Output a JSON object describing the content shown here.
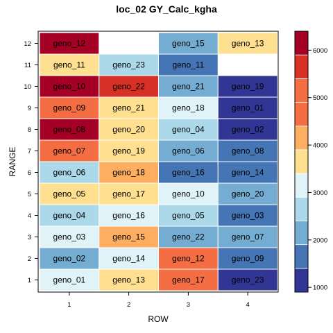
{
  "chart_data": {
    "type": "heatmap",
    "title": "loc_02 GY_Calc_kgha",
    "xlabel": "ROW",
    "ylabel": "RANGE",
    "x_ticks": [
      "1",
      "2",
      "3",
      "4"
    ],
    "y_ticks": [
      "1",
      "2",
      "3",
      "4",
      "5",
      "6",
      "7",
      "8",
      "9",
      "10",
      "11",
      "12"
    ],
    "colorbar": {
      "min": 900,
      "max": 6400,
      "bins": [
        {
          "from": 900,
          "to": 1400,
          "color": "#313695"
        },
        {
          "from": 1400,
          "to": 1900,
          "color": "#4575b4"
        },
        {
          "from": 1900,
          "to": 2400,
          "color": "#74add1"
        },
        {
          "from": 2400,
          "to": 2900,
          "color": "#abd9e9"
        },
        {
          "from": 2900,
          "to": 3400,
          "color": "#e0f3f8"
        },
        {
          "from": 3400,
          "to": 3900,
          "color": "#fee090"
        },
        {
          "from": 3900,
          "to": 4400,
          "color": "#fdae61"
        },
        {
          "from": 4400,
          "to": 4900,
          "color": "#f46d43"
        },
        {
          "from": 4900,
          "to": 5400,
          "color": "#f46d43"
        },
        {
          "from": 5400,
          "to": 5900,
          "color": "#d73027"
        },
        {
          "from": 5900,
          "to": 6400,
          "color": "#a50026"
        }
      ],
      "ticks": [
        "1000",
        "2000",
        "3000",
        "4000",
        "5000",
        "6000"
      ]
    },
    "cells": [
      {
        "row": 1,
        "range": 1,
        "label": "geno_01",
        "value": 3200
      },
      {
        "row": 2,
        "range": 1,
        "label": "geno_13",
        "value": 3700
      },
      {
        "row": 3,
        "range": 1,
        "label": "geno_17",
        "value": 4600
      },
      {
        "row": 4,
        "range": 1,
        "label": "geno_23",
        "value": 1100
      },
      {
        "row": 1,
        "range": 2,
        "label": "geno_02",
        "value": 2200
      },
      {
        "row": 2,
        "range": 2,
        "label": "geno_14",
        "value": 3200
      },
      {
        "row": 3,
        "range": 2,
        "label": "geno_12",
        "value": 4700
      },
      {
        "row": 4,
        "range": 2,
        "label": "geno_09",
        "value": 1600
      },
      {
        "row": 1,
        "range": 3,
        "label": "geno_03",
        "value": 3200
      },
      {
        "row": 2,
        "range": 3,
        "label": "geno_15",
        "value": 4200
      },
      {
        "row": 3,
        "range": 3,
        "label": "geno_22",
        "value": 2200
      },
      {
        "row": 4,
        "range": 3,
        "label": "geno_07",
        "value": 2200
      },
      {
        "row": 1,
        "range": 4,
        "label": "geno_04",
        "value": 2700
      },
      {
        "row": 2,
        "range": 4,
        "label": "geno_16",
        "value": 3200
      },
      {
        "row": 3,
        "range": 4,
        "label": "geno_05",
        "value": 2700
      },
      {
        "row": 4,
        "range": 4,
        "label": "geno_03",
        "value": 1600
      },
      {
        "row": 1,
        "range": 5,
        "label": "geno_05",
        "value": 3700
      },
      {
        "row": 2,
        "range": 5,
        "label": "geno_17",
        "value": 3700
      },
      {
        "row": 3,
        "range": 5,
        "label": "geno_10",
        "value": 3200
      },
      {
        "row": 4,
        "range": 5,
        "label": "geno_20",
        "value": 2200
      },
      {
        "row": 1,
        "range": 6,
        "label": "geno_06",
        "value": 2700
      },
      {
        "row": 2,
        "range": 6,
        "label": "geno_18",
        "value": 4200
      },
      {
        "row": 3,
        "range": 6,
        "label": "geno_16",
        "value": 1600
      },
      {
        "row": 4,
        "range": 6,
        "label": "geno_14",
        "value": 1600
      },
      {
        "row": 1,
        "range": 7,
        "label": "geno_07",
        "value": 4700
      },
      {
        "row": 2,
        "range": 7,
        "label": "geno_19",
        "value": 3700
      },
      {
        "row": 3,
        "range": 7,
        "label": "geno_06",
        "value": 2200
      },
      {
        "row": 4,
        "range": 7,
        "label": "geno_08",
        "value": 1600
      },
      {
        "row": 1,
        "range": 8,
        "label": "geno_08",
        "value": 6200
      },
      {
        "row": 2,
        "range": 8,
        "label": "geno_20",
        "value": 3700
      },
      {
        "row": 3,
        "range": 8,
        "label": "geno_04",
        "value": 2700
      },
      {
        "row": 4,
        "range": 8,
        "label": "geno_02",
        "value": 1100
      },
      {
        "row": 1,
        "range": 9,
        "label": "geno_09",
        "value": 4700
      },
      {
        "row": 2,
        "range": 9,
        "label": "geno_21",
        "value": 3700
      },
      {
        "row": 3,
        "range": 9,
        "label": "geno_18",
        "value": 3200
      },
      {
        "row": 4,
        "range": 9,
        "label": "geno_01",
        "value": 1100
      },
      {
        "row": 1,
        "range": 10,
        "label": "geno_10",
        "value": 6200
      },
      {
        "row": 2,
        "range": 10,
        "label": "geno_22",
        "value": 5700
      },
      {
        "row": 3,
        "range": 10,
        "label": "geno_21",
        "value": 2200
      },
      {
        "row": 4,
        "range": 10,
        "label": "geno_19",
        "value": 1100
      },
      {
        "row": 1,
        "range": 11,
        "label": "geno_11",
        "value": 3700
      },
      {
        "row": 2,
        "range": 11,
        "label": "geno_23",
        "value": 2700
      },
      {
        "row": 3,
        "range": 11,
        "label": "geno_11",
        "value": 1600
      },
      {
        "row": 1,
        "range": 12,
        "label": "geno_12",
        "value": 6200
      },
      {
        "row": 3,
        "range": 12,
        "label": "geno_15",
        "value": 2200
      },
      {
        "row": 4,
        "range": 12,
        "label": "geno_13",
        "value": 3700
      }
    ]
  }
}
